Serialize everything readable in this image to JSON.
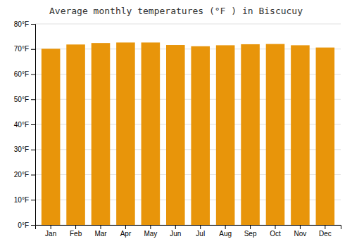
{
  "chart_data": {
    "type": "bar",
    "title": "Average monthly temperatures (°F ) in Biscucuy",
    "categories": [
      "Jan",
      "Feb",
      "Mar",
      "Apr",
      "May",
      "Jun",
      "Jul",
      "Aug",
      "Sep",
      "Oct",
      "Nov",
      "Dec"
    ],
    "values": [
      70.1,
      71.8,
      72.4,
      72.6,
      72.6,
      71.6,
      71.1,
      71.5,
      71.9,
      72.0,
      71.5,
      70.6
    ],
    "color": "#E8950A",
    "ylim": [
      0,
      80
    ],
    "yticks": [
      {
        "value": 0,
        "label": "0°F"
      },
      {
        "value": 10,
        "label": "10°F"
      },
      {
        "value": 20,
        "label": "20°F"
      },
      {
        "value": 30,
        "label": "30°F"
      },
      {
        "value": 40,
        "label": "40°F"
      },
      {
        "value": 50,
        "label": "50°F"
      },
      {
        "value": 60,
        "label": "60°F"
      },
      {
        "value": 70,
        "label": "70°F"
      },
      {
        "value": 80,
        "label": "80°F"
      }
    ],
    "grid": true
  }
}
